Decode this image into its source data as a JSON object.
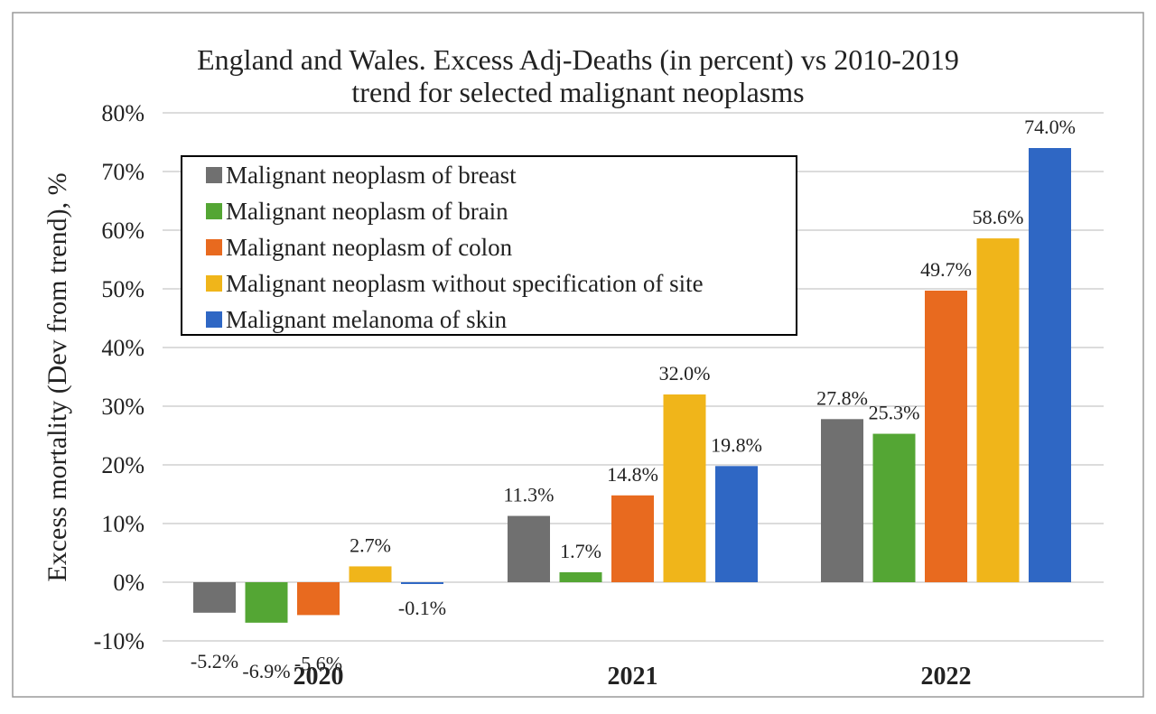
{
  "chart_data": {
    "type": "bar",
    "title_lines": [
      "England and Wales. Excess Adj-Deaths (in percent) vs 2010-2019",
      "trend for selected malignant neoplasms"
    ],
    "ylabel": "Excess mortality (Dev from trend), %",
    "xlabel": "",
    "categories": [
      "2020",
      "2021",
      "2022"
    ],
    "ylim": [
      -10,
      80
    ],
    "y_ticks": [
      {
        "v": 80,
        "label": "80%"
      },
      {
        "v": 70,
        "label": "70%"
      },
      {
        "v": 60,
        "label": "60%"
      },
      {
        "v": 50,
        "label": "50%"
      },
      {
        "v": 40,
        "label": "40%"
      },
      {
        "v": 30,
        "label": "30%"
      },
      {
        "v": 20,
        "label": "20%"
      },
      {
        "v": 10,
        "label": "10%"
      },
      {
        "v": 0,
        "label": "0%"
      },
      {
        "v": -10,
        "label": "-10%"
      }
    ],
    "grid": true,
    "legend_position": "top-left inside plot",
    "series": [
      {
        "name": "Malignant neoplasm of breast",
        "color": "#707070",
        "values": [
          -5.2,
          11.3,
          27.8
        ],
        "labels": [
          "-5.2%",
          "11.3%",
          "27.8%"
        ]
      },
      {
        "name": "Malignant neoplasm of brain",
        "color": "#54a634",
        "values": [
          -6.9,
          1.7,
          25.3
        ],
        "labels": [
          "-6.9%",
          "1.7%",
          "25.3%"
        ]
      },
      {
        "name": "Malignant neoplasm of colon",
        "color": "#e86a1f",
        "values": [
          -5.6,
          14.8,
          49.7
        ],
        "labels": [
          "-5.6%",
          "14.8%",
          "49.7%"
        ]
      },
      {
        "name": "Malignant neoplasm without specification of site",
        "color": "#f0b51a",
        "values": [
          2.7,
          32.0,
          58.6
        ],
        "labels": [
          "2.7%",
          "32.0%",
          "58.6%"
        ]
      },
      {
        "name": "Malignant melanoma of skin",
        "color": "#2f67c4",
        "values": [
          -0.1,
          19.8,
          74.0
        ],
        "labels": [
          "-0.1%",
          "19.8%",
          "74.0%"
        ]
      }
    ]
  }
}
